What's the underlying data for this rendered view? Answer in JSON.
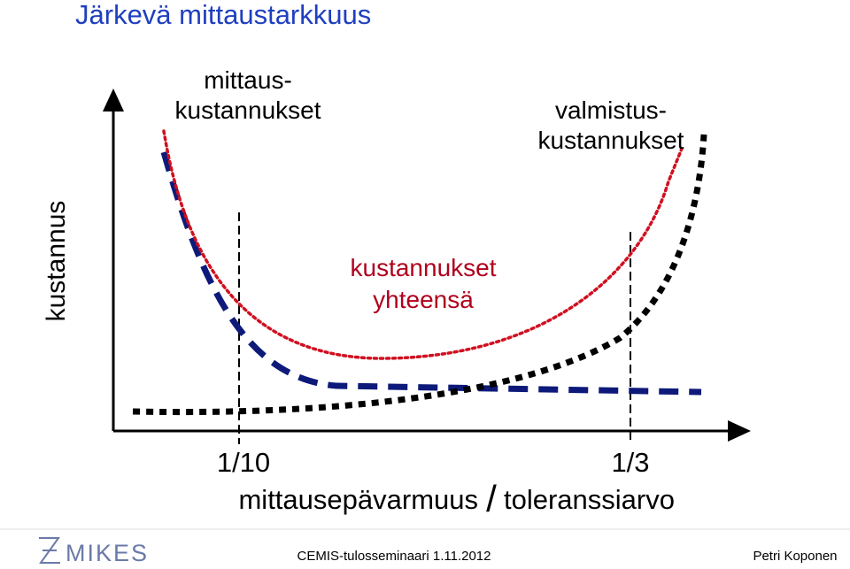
{
  "title": "Järkevä mittaustarkkuus",
  "axes": {
    "y_label": "kustannus",
    "x_label": [
      "mittausepävarmuus",
      "/",
      "toleranssiarvo"
    ],
    "x_markers": [
      "1/10",
      "1/3"
    ]
  },
  "curves": [
    {
      "label": [
        "mittaus-",
        "kustannukset"
      ]
    },
    {
      "label": [
        "valmistus-",
        "kustannukset"
      ]
    },
    {
      "label": [
        "kustannukset",
        "yhteensä"
      ]
    }
  ],
  "footer": {
    "logo": "MIKES",
    "event": "CEMIS-tulosseminaari 1.11.2012",
    "author": "Petri Koponen"
  }
}
